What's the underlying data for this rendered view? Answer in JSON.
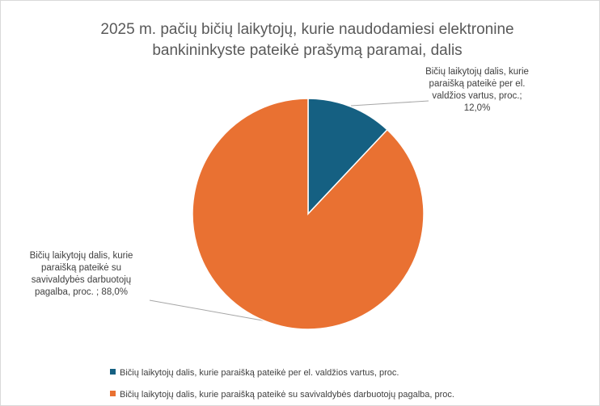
{
  "chart_data": {
    "type": "pie",
    "title": "2025 m. pačių bičių laikytojų, kurie naudodamiesi elektronine bankininkyste pateikė prašymą paramai, dalis",
    "categories": [
      "Bičių laikytojų dalis, kurie paraišką pateikė per el. valdžios vartus, proc.",
      "Bičių laikytojų dalis, kurie paraišką pateikė su savivaldybės darbuotojų pagalba, proc."
    ],
    "values": [
      12.0,
      88.0
    ],
    "value_labels": [
      "Bičių laikytojų dalis, kurie paraišką pateikė per el. valdžios vartus, proc.; 12,0%",
      "Bičių laikytojų dalis, kurie paraišką pateikė su savivaldybės darbuotojų pagalba, proc. ; 88,0%"
    ],
    "colors": [
      "#156082",
      "#e97132"
    ],
    "legend": "bottom"
  }
}
